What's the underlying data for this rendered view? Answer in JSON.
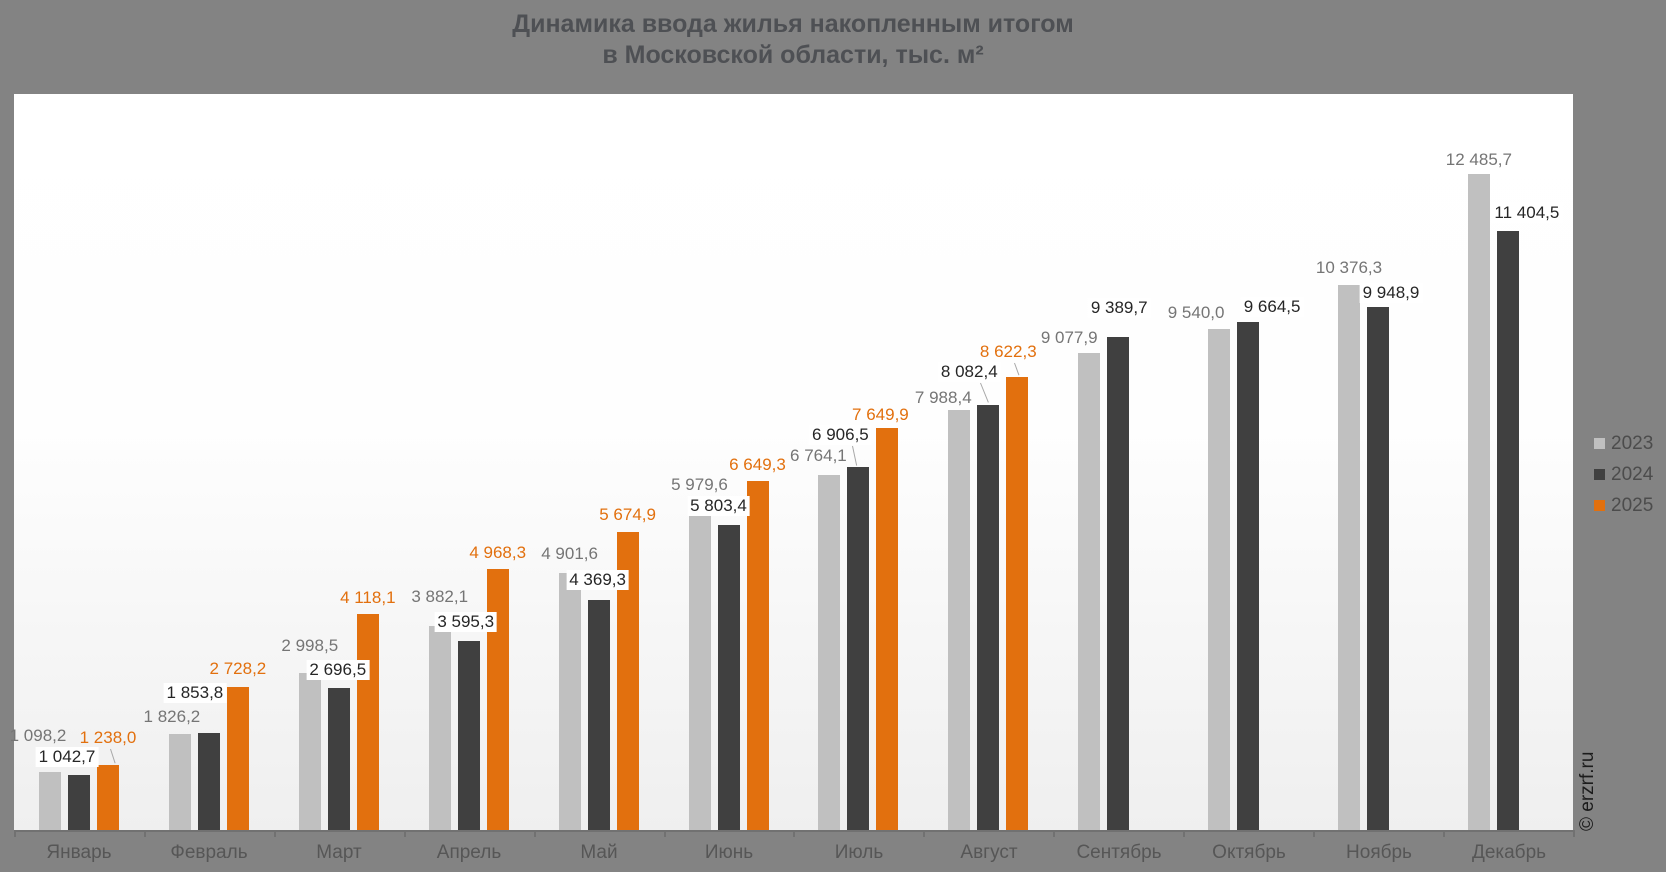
{
  "title_line1": "Динамика ввода жилья накопленным итогом",
  "title_line2": "в Московской области, тыс. м²",
  "watermark": "© erzrf.ru",
  "colors": {
    "background": "#838383",
    "plot_background_top": "#ffffff",
    "plot_background_bottom": "#efefef",
    "axis": "#717171",
    "title_text": "#4e5054",
    "month_label_text": "#565656",
    "legend_text": "#4c4c4c",
    "series_2023": "#c0c0c0",
    "series_2024": "#404040",
    "series_2025": "#e2700e"
  },
  "chart_data": {
    "type": "bar",
    "title": "Динамика ввода жилья накопленным итогом в Московской области, тыс. м²",
    "xlabel": "",
    "ylabel": "",
    "units": "тыс. м²",
    "ylim": [
      0,
      14000
    ],
    "grid": false,
    "legend_position": "right",
    "value_labels_shown": true,
    "categories": [
      "Январь",
      "Февраль",
      "Март",
      "Апрель",
      "Май",
      "Июнь",
      "Июль",
      "Август",
      "Сентябрь",
      "Октябрь",
      "Ноябрь",
      "Декабрь"
    ],
    "series": [
      {
        "name": "2023",
        "color": "#c0c0c0",
        "label_color": "#757575",
        "values": [
          1098.2,
          1826.2,
          2998.5,
          3882.1,
          4901.6,
          5979.6,
          6764.1,
          7988.4,
          9077.9,
          9540.0,
          10376.3,
          12485.7
        ],
        "labels": [
          "1 098,2",
          "1 826,2",
          "2 998,5",
          "3 882,1",
          "4 901,6",
          "5 979,6",
          "6 764,1",
          "7 988,4",
          "9 077,9",
          "9 540,0",
          "10 376,3",
          "12 485,7"
        ]
      },
      {
        "name": "2024",
        "color": "#404040",
        "label_color": "#262626",
        "values": [
          1042.7,
          1853.8,
          2696.5,
          3595.3,
          4369.3,
          5803.4,
          6906.5,
          8082.4,
          9389.7,
          9664.5,
          9948.9,
          11404.5
        ],
        "labels": [
          "1 042,7",
          "1 853,8",
          "2 696,5",
          "3 595,3",
          "4 369,3",
          "5 803,4",
          "6 906,5",
          "8 082,4",
          "9 389,7",
          "9 664,5",
          "9 948,9",
          "11 404,5"
        ]
      },
      {
        "name": "2025",
        "color": "#e2700e",
        "label_color": "#e2700e",
        "values": [
          1238.0,
          2728.2,
          4118.1,
          4968.3,
          5674.9,
          6649.3,
          7649.9,
          8622.3
        ],
        "labels": [
          "1 238,0",
          "2 728,2",
          "4 118,1",
          "4 968,3",
          "5 674,9",
          "6 649,3",
          "7 649,9",
          "8 622,3"
        ]
      }
    ]
  }
}
